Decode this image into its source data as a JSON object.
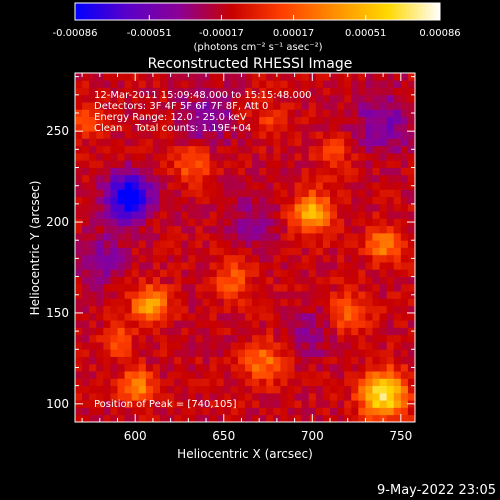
{
  "colorbar": {
    "ticks": [
      "-0.00086",
      "-0.00051",
      "-0.00017",
      "0.00017",
      "0.00051",
      "0.00086"
    ],
    "tick_values": [
      -0.00086,
      -0.00051,
      -0.00017,
      0.00017,
      0.00051,
      0.00086
    ],
    "range": [
      -0.00086,
      0.00086
    ],
    "units": "(photons cm⁻² s⁻¹ asec⁻²)",
    "colors": [
      "#0000ff",
      "#5a00c8",
      "#8c0096",
      "#c80000",
      "#ff4000",
      "#ff9000",
      "#ffd800",
      "#ffffff"
    ]
  },
  "chart_data": {
    "type": "heatmap",
    "title": "Reconstructed RHESSI Image",
    "xlabel": "Heliocentric X (arcsec)",
    "ylabel": "Heliocentric Y (arcsec)",
    "xlim": [
      566,
      758
    ],
    "ylim": [
      90,
      282
    ],
    "xticks": [
      600,
      650,
      700,
      750
    ],
    "yticks": [
      100,
      150,
      200,
      250
    ],
    "info_lines": [
      "12-Mar-2011 15:09:48.000 to 15:15:48.000",
      "Detectors: 3F 4F 5F 6F 7F 8F, Att 0",
      "Energy Range: 12.0 - 25.0 keV",
      "Clean    Total counts: 1.19E+04"
    ],
    "peak_label": "Position of Peak = [740,105]",
    "peak_position": [
      740,
      105
    ],
    "sources": [
      {
        "x": 740,
        "y": 105,
        "peak": 0.00086,
        "sigma": 9
      },
      {
        "x": 601,
        "y": 110,
        "peak": 0.00055,
        "sigma": 6
      },
      {
        "x": 608,
        "y": 155,
        "peak": 0.0006,
        "sigma": 7
      },
      {
        "x": 700,
        "y": 205,
        "peak": 0.00062,
        "sigma": 8
      },
      {
        "x": 632,
        "y": 232,
        "peak": 0.00035,
        "sigma": 7
      },
      {
        "x": 672,
        "y": 123,
        "peak": 0.0004,
        "sigma": 8
      },
      {
        "x": 573,
        "y": 255,
        "peak": 0.0003,
        "sigma": 6
      },
      {
        "x": 740,
        "y": 188,
        "peak": 0.00045,
        "sigma": 7
      },
      {
        "x": 655,
        "y": 168,
        "peak": 0.0003,
        "sigma": 8
      },
      {
        "x": 720,
        "y": 150,
        "peak": 0.00035,
        "sigma": 8
      },
      {
        "x": 712,
        "y": 238,
        "peak": 0.00025,
        "sigma": 7
      },
      {
        "x": 590,
        "y": 135,
        "peak": 0.0003,
        "sigma": 6
      },
      {
        "x": 675,
        "y": 258,
        "peak": 0.0002,
        "sigma": 7
      },
      {
        "x": 596,
        "y": 214,
        "peak": -0.00086,
        "sigma": 9
      },
      {
        "x": 640,
        "y": 258,
        "peak": -0.0003,
        "sigma": 10
      },
      {
        "x": 665,
        "y": 200,
        "peak": -0.0002,
        "sigma": 10
      },
      {
        "x": 740,
        "y": 255,
        "peak": -0.0003,
        "sigma": 12
      },
      {
        "x": 700,
        "y": 140,
        "peak": -0.0002,
        "sigma": 10
      },
      {
        "x": 580,
        "y": 180,
        "peak": -0.0003,
        "sigma": 9
      }
    ]
  },
  "footer": {
    "timestamp": "9-May-2022 23:05"
  }
}
